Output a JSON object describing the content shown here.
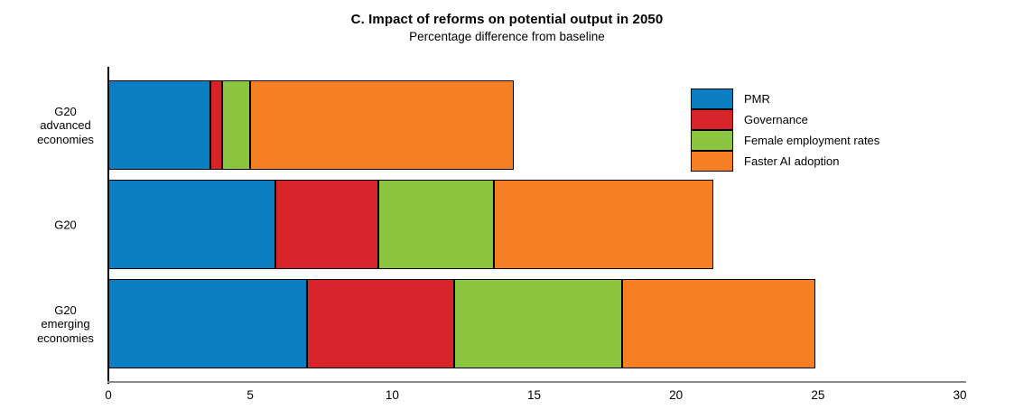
{
  "chart": {
    "title": "C. Impact of reforms on potential output in 2050",
    "subtitle": "Percentage difference from baseline"
  },
  "chart_data": {
    "type": "bar",
    "orientation": "horizontal",
    "stacked": true,
    "title": "C. Impact of reforms on potential output in 2050",
    "subtitle": "Percentage difference from baseline",
    "categories": [
      "G20\nadvanced\neconomies",
      "G20",
      "G20\nemerging\neconomies"
    ],
    "series": [
      {
        "name": "PMR",
        "color": "#0b7dc1",
        "values": [
          3.6,
          5.9,
          7.0
        ]
      },
      {
        "name": "Governance",
        "color": "#d7232a",
        "values": [
          0.4,
          3.6,
          5.2
        ]
      },
      {
        "name": "Female employment rates",
        "color": "#8bc53f",
        "values": [
          1.0,
          4.1,
          5.9
        ]
      },
      {
        "name": "Faster AI adoption",
        "color": "#f57f22",
        "values": [
          9.3,
          7.7,
          6.8
        ]
      }
    ],
    "totals": [
      14.3,
      21.3,
      24.9
    ],
    "xlim": [
      0,
      30
    ],
    "x_ticks": [
      0,
      5,
      10,
      15,
      20,
      25,
      30
    ],
    "xlabel": "",
    "ylabel": "",
    "grid": false,
    "legend_position": "upper right",
    "axis_color": "#8a8a8a",
    "bar_border_color": "#000000"
  }
}
